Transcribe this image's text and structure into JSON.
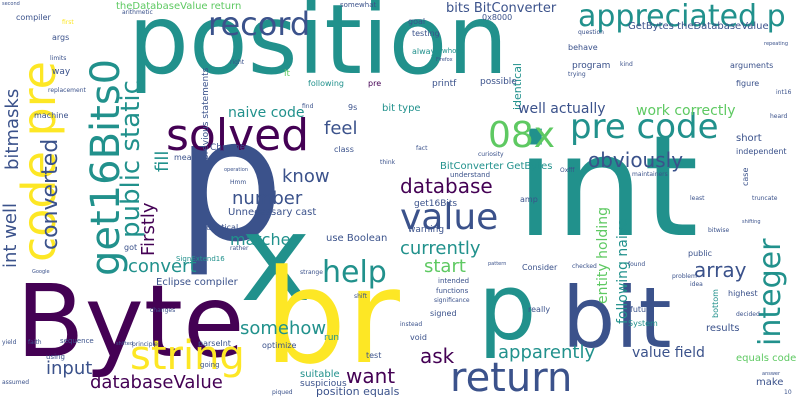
{
  "palette": {
    "dark_purple": "#440154",
    "indigo": "#3b528b",
    "teal": "#21918c",
    "green": "#5ec962",
    "yellow": "#fde725"
  },
  "words": [
    "position",
    "int",
    "p",
    "Byte",
    "x",
    "br",
    "solved",
    "bit",
    "bits",
    "return",
    "value",
    "record",
    "pre code",
    "code pre",
    "get16Bits0",
    "08x",
    "string",
    "help",
    "appreciated p",
    "public static",
    "integer",
    "bitmasks",
    "int well",
    "converted",
    "database",
    "number",
    "know",
    "obviously",
    "convert",
    "matches",
    "currently",
    "array",
    "start",
    "apparently",
    "want",
    "somehow",
    "databaseValue",
    "input",
    "ask",
    "feel",
    "naive code",
    "work correctly",
    "well actually",
    "Firstly",
    "fill",
    "entity holding",
    "following naive",
    "value field",
    "bits BitConverter",
    "BitConverter GetBytes",
    "GetBytes theDatabaseValue",
    "theDatabaseValue return",
    "Unnecessary cast",
    "use Boolean",
    "Eclipse compiler",
    "position equals",
    "suitable",
    "suspicious",
    "equals code",
    "previous statements",
    "Chrome",
    "identical",
    "get16Bits",
    "warning",
    "bit type",
    "array Lastly",
    "printf",
    "possible",
    "program",
    "behave",
    "testing",
    "always",
    "whose",
    "goal",
    "question",
    "arguments",
    "figure",
    "short",
    "independent",
    "case",
    "results",
    "highest",
    "make",
    "public",
    "bottom",
    "future",
    "System",
    "really",
    "Consider",
    "signed",
    "void",
    "optimize",
    "run",
    "test",
    "parseInt",
    "mean",
    "class",
    "fact",
    "9s",
    "0x8000",
    "somewhat",
    "arithmetic",
    "compiler",
    "args",
    "limits",
    "way",
    "machine",
    "replacement",
    "find",
    "got",
    "yield",
    "instead",
    "amp",
    "Hmm",
    "lt",
    "first",
    "following",
    "rather",
    "least",
    "truncate",
    "SignExtend16",
    "faith",
    "sequence",
    "using",
    "assumed",
    "principle",
    "shifted",
    "changes",
    "strange",
    "curiosity",
    "understand",
    "intended",
    "functions",
    "significance",
    "pattern",
    "checked",
    "kind",
    "found",
    "problem",
    "idea",
    "maintainers",
    "decided",
    "repeating",
    "trying",
    "think",
    "shift",
    "going",
    "second",
    "piqued",
    "Google",
    "operation",
    "bitwise",
    "shifting",
    "heard",
    "answer",
    "10",
    "Oxfff",
    "Firefox",
    "pre",
    "int16",
    "right"
  ]
}
